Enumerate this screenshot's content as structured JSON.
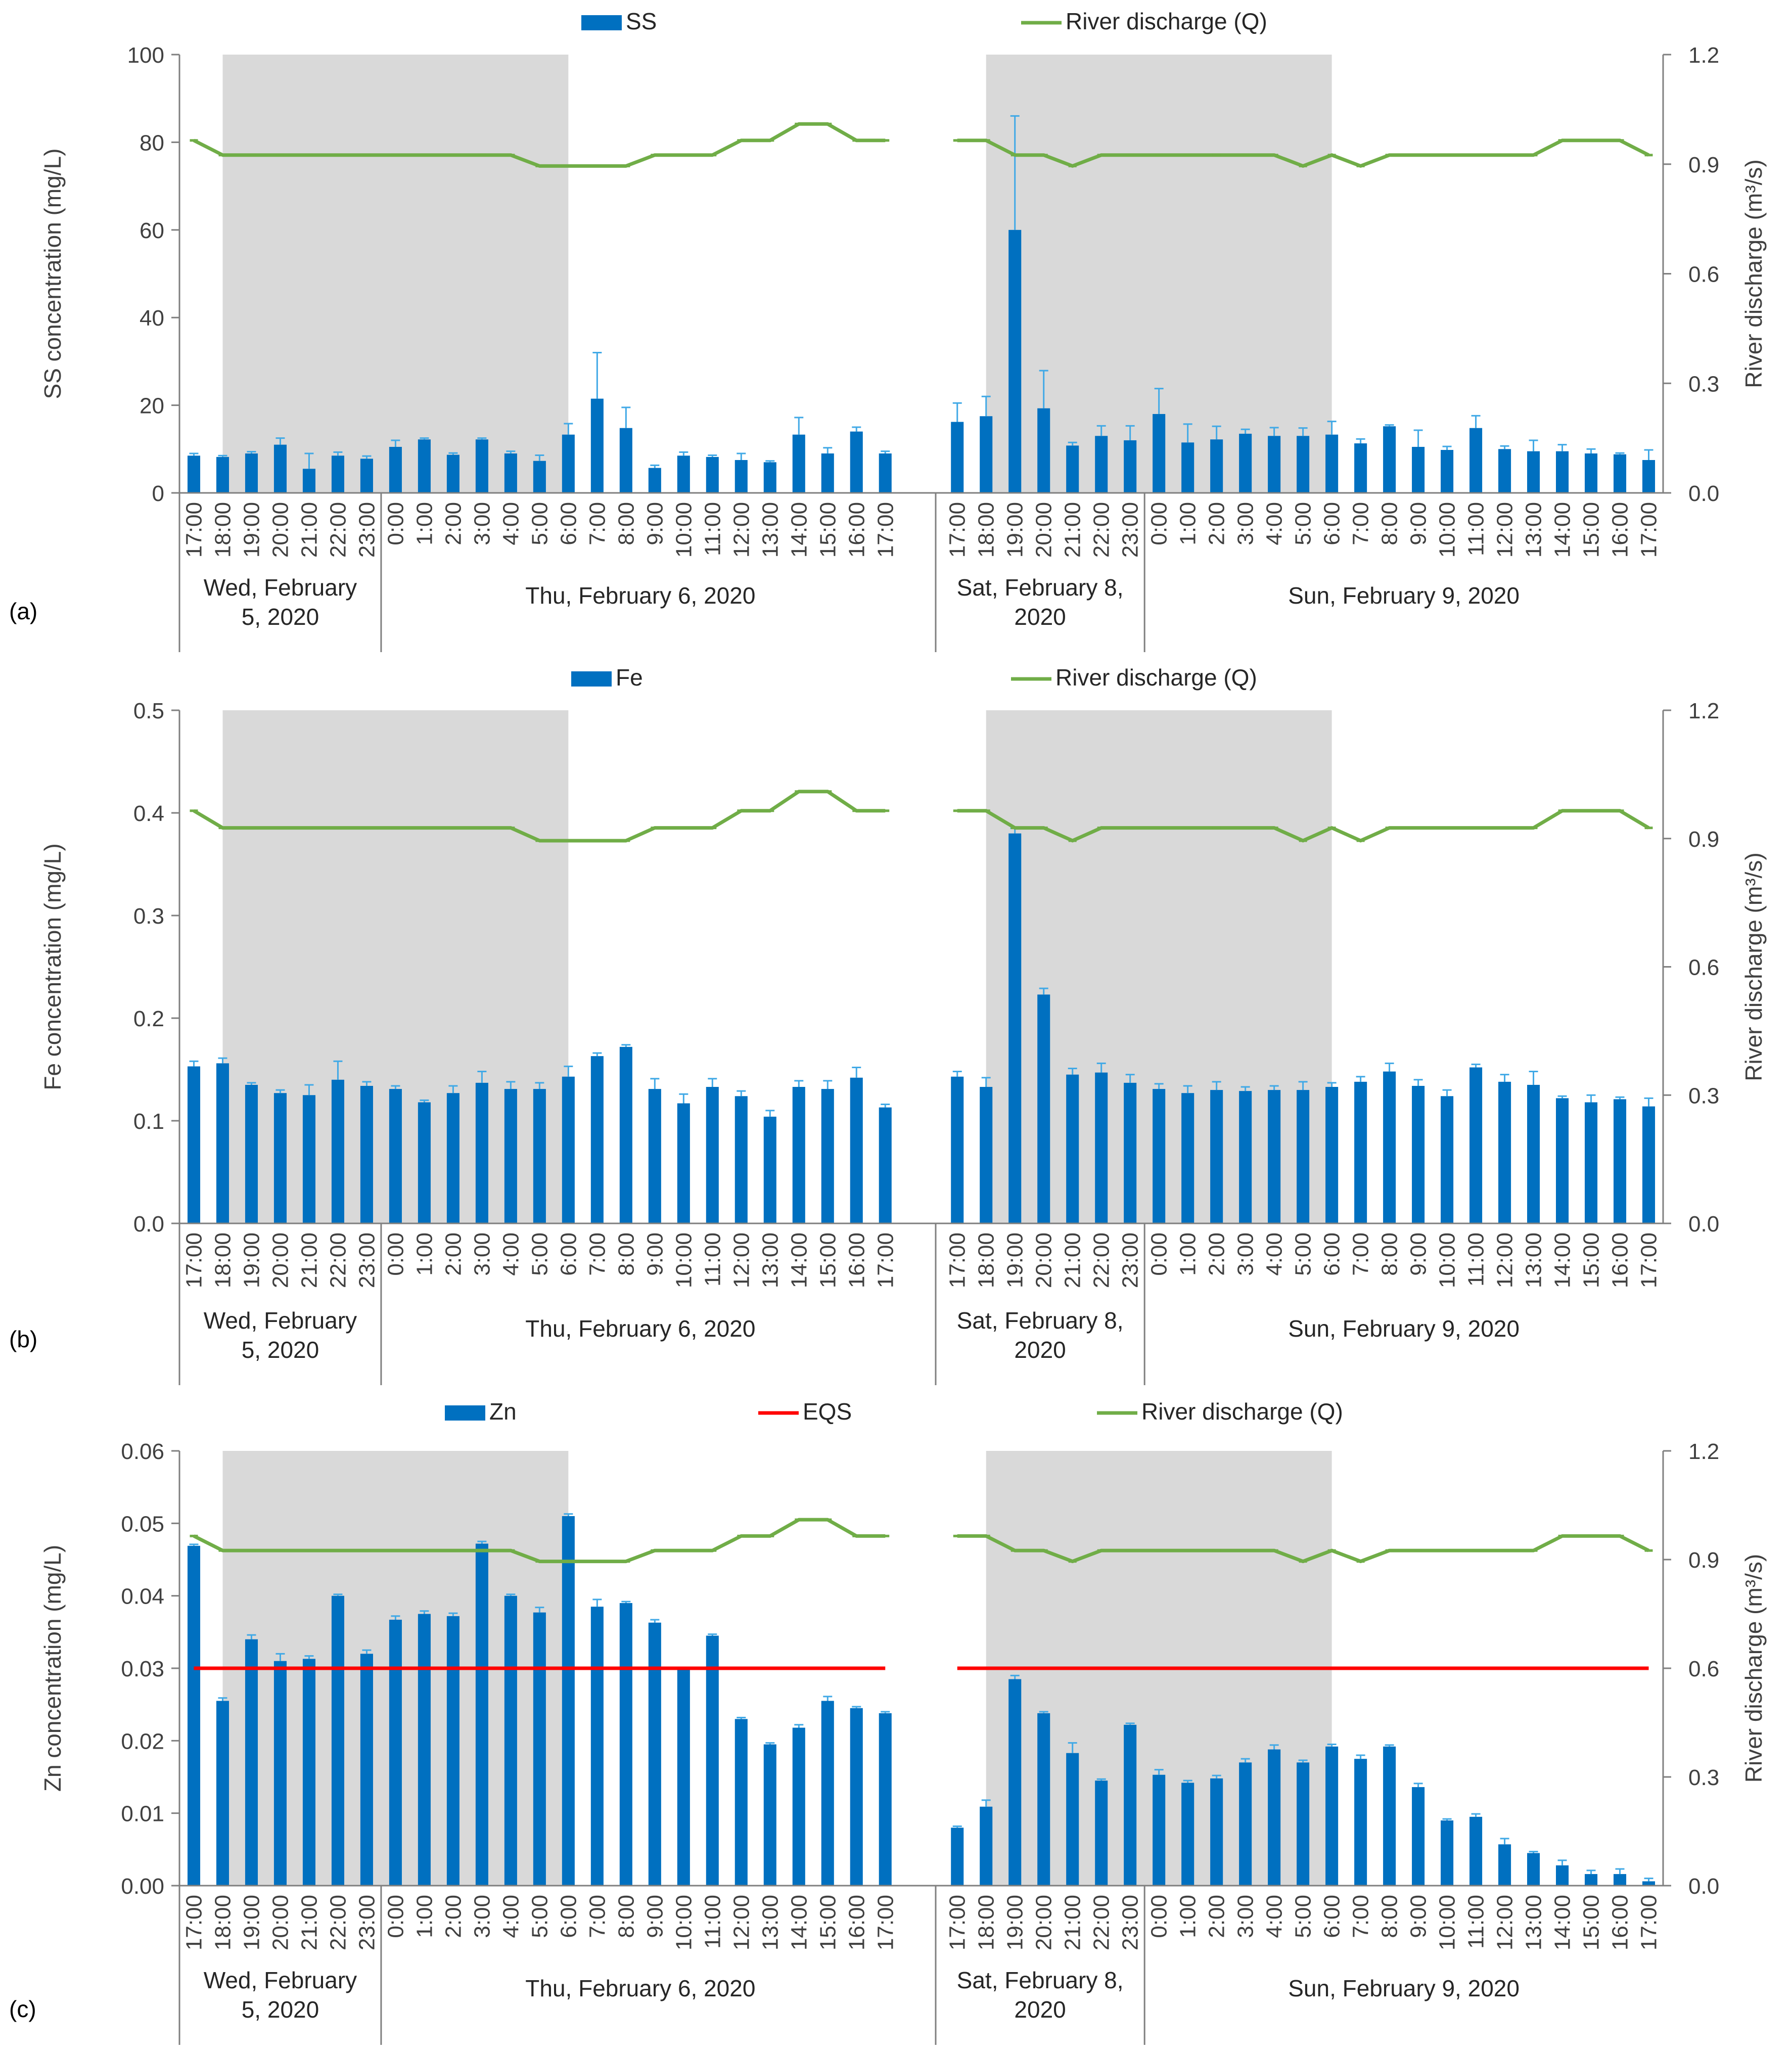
{
  "chart_data": [
    {
      "type": "bar",
      "panel_label": "(a)",
      "title": "",
      "ylabel": "SS concentration (mg/L)",
      "y2label": "River discharge (m³/s)",
      "ylim": [
        0,
        100
      ],
      "yticks": [
        "0",
        "20",
        "40",
        "60",
        "80",
        "100"
      ],
      "y2lim": [
        0,
        1.2
      ],
      "y2ticks": [
        "0.0",
        "0.3",
        "0.6",
        "0.9",
        "1.2"
      ],
      "legend": {
        "bars": "SS",
        "discharge": "River discharge (Q)"
      },
      "series": [
        {
          "name": "SS",
          "values": [
            8.5,
            8.2,
            9.0,
            11.0,
            5.5,
            8.5,
            7.8,
            10.5,
            12.2,
            8.7,
            12.2,
            9.0,
            7.3,
            13.3,
            21.5,
            14.8,
            5.7,
            8.5,
            8.2,
            7.5,
            7.0,
            13.3,
            9.0,
            14.0,
            9.0,
            16.2,
            17.5,
            60.0,
            19.3,
            10.8,
            13.0,
            12.0,
            18.0,
            11.5,
            12.2,
            13.5,
            13.0,
            13.0,
            13.3,
            11.3,
            15.2,
            10.5,
            9.8,
            14.8,
            10.0,
            9.5,
            9.5,
            9.0,
            8.8,
            7.5
          ]
        },
        {
          "name": "SS error",
          "values": [
            0.5,
            0.3,
            0.4,
            1.5,
            3.5,
            0.8,
            0.6,
            1.5,
            0.3,
            0.4,
            0.3,
            0.5,
            1.3,
            2.5,
            10.5,
            4.7,
            0.6,
            0.8,
            0.4,
            1.5,
            0.3,
            3.9,
            1.3,
            1.0,
            0.5,
            4.3,
            4.5,
            26.0,
            8.6,
            0.7,
            2.3,
            3.3,
            5.8,
            4.2,
            3.0,
            1.0,
            1.9,
            1.8,
            3.0,
            1.0,
            0.3,
            3.8,
            0.8,
            2.8,
            0.7,
            2.5,
            1.5,
            1.0,
            0.3,
            2.3
          ]
        },
        {
          "name": "River discharge (Q)",
          "values": [
            0.965,
            0.925,
            0.925,
            0.925,
            0.925,
            0.925,
            0.925,
            0.925,
            0.925,
            0.925,
            0.925,
            0.925,
            0.895,
            0.895,
            0.895,
            0.895,
            0.925,
            0.925,
            0.925,
            0.965,
            0.965,
            1.01,
            1.01,
            0.965,
            0.965,
            0.965,
            0.965,
            0.925,
            0.925,
            0.895,
            0.925,
            0.925,
            0.925,
            0.925,
            0.925,
            0.925,
            0.925,
            0.895,
            0.925,
            0.895,
            0.925,
            0.925,
            0.925,
            0.925,
            0.925,
            0.925,
            0.965,
            0.965,
            0.965,
            0.925
          ]
        }
      ]
    },
    {
      "type": "bar",
      "panel_label": "(b)",
      "title": "",
      "ylabel": "Fe concentration (mg/L)",
      "y2label": "River discharge (m³/s)",
      "ylim": [
        0,
        0.5
      ],
      "yticks": [
        "0.0",
        "0.1",
        "0.2",
        "0.3",
        "0.4",
        "0.5"
      ],
      "y2lim": [
        0,
        1.2
      ],
      "y2ticks": [
        "0.0",
        "0.3",
        "0.6",
        "0.9",
        "1.2"
      ],
      "legend": {
        "bars": "Fe",
        "discharge": "River discharge (Q)"
      },
      "series": [
        {
          "name": "Fe",
          "values": [
            0.153,
            0.156,
            0.135,
            0.127,
            0.125,
            0.14,
            0.134,
            0.131,
            0.118,
            0.127,
            0.137,
            0.131,
            0.131,
            0.143,
            0.163,
            0.172,
            0.131,
            0.117,
            0.133,
            0.124,
            0.104,
            0.133,
            0.131,
            0.142,
            0.113,
            0.143,
            0.133,
            0.38,
            0.223,
            0.145,
            0.147,
            0.137,
            0.131,
            0.127,
            0.13,
            0.129,
            0.13,
            0.13,
            0.133,
            0.138,
            0.148,
            0.134,
            0.124,
            0.152,
            0.138,
            0.135,
            0.122,
            0.118,
            0.121,
            0.114
          ]
        },
        {
          "name": "Fe error",
          "values": [
            0.005,
            0.005,
            0.002,
            0.003,
            0.01,
            0.018,
            0.004,
            0.003,
            0.002,
            0.007,
            0.011,
            0.007,
            0.006,
            0.01,
            0.003,
            0.002,
            0.01,
            0.009,
            0.008,
            0.005,
            0.006,
            0.006,
            0.008,
            0.01,
            0.003,
            0.005,
            0.009,
            0.005,
            0.006,
            0.006,
            0.009,
            0.008,
            0.005,
            0.007,
            0.008,
            0.004,
            0.004,
            0.008,
            0.004,
            0.005,
            0.008,
            0.006,
            0.006,
            0.003,
            0.007,
            0.013,
            0.002,
            0.007,
            0.002,
            0.008
          ]
        },
        {
          "name": "River discharge (Q)",
          "values": [
            0.965,
            0.925,
            0.925,
            0.925,
            0.925,
            0.925,
            0.925,
            0.925,
            0.925,
            0.925,
            0.925,
            0.925,
            0.895,
            0.895,
            0.895,
            0.895,
            0.925,
            0.925,
            0.925,
            0.965,
            0.965,
            1.01,
            1.01,
            0.965,
            0.965,
            0.965,
            0.965,
            0.925,
            0.925,
            0.895,
            0.925,
            0.925,
            0.925,
            0.925,
            0.925,
            0.925,
            0.925,
            0.895,
            0.925,
            0.895,
            0.925,
            0.925,
            0.925,
            0.925,
            0.925,
            0.925,
            0.965,
            0.965,
            0.965,
            0.925
          ]
        }
      ]
    },
    {
      "type": "bar",
      "panel_label": "(c)",
      "title": "",
      "ylabel": "Zn concentration (mg/L)",
      "y2label": "River discharge (m³/s)",
      "ylim": [
        0,
        0.06
      ],
      "yticks": [
        "0.00",
        "0.01",
        "0.02",
        "0.03",
        "0.04",
        "0.05",
        "0.06"
      ],
      "y2lim": [
        0,
        1.2
      ],
      "y2ticks": [
        "0.0",
        "0.3",
        "0.6",
        "0.9",
        "1.2"
      ],
      "legend": {
        "bars": "Zn",
        "eqs": "EQS",
        "discharge": "River discharge (Q)"
      },
      "eqs_value": 0.03,
      "series": [
        {
          "name": "Zn",
          "values": [
            0.0469,
            0.0255,
            0.034,
            0.031,
            0.0313,
            0.04,
            0.032,
            0.0367,
            0.0375,
            0.0372,
            0.0472,
            0.04,
            0.0377,
            0.051,
            0.0385,
            0.039,
            0.0363,
            0.0298,
            0.0345,
            0.023,
            0.0195,
            0.0218,
            0.0255,
            0.0245,
            0.0238,
            0.008,
            0.0109,
            0.0285,
            0.0238,
            0.0183,
            0.0145,
            0.0222,
            0.0153,
            0.0142,
            0.0148,
            0.017,
            0.0188,
            0.017,
            0.0192,
            0.0175,
            0.0192,
            0.0136,
            0.009,
            0.0095,
            0.0057,
            0.0045,
            0.0028,
            0.0016,
            0.0016,
            0.0006
          ]
        },
        {
          "name": "Zn error",
          "values": [
            0.0002,
            0.0004,
            0.0006,
            0.001,
            0.0004,
            0.0002,
            0.0005,
            0.0005,
            0.0004,
            0.0004,
            0.0003,
            0.0002,
            0.0007,
            0.0003,
            0.001,
            0.0002,
            0.0004,
            0.0002,
            0.0002,
            0.0002,
            0.0002,
            0.0004,
            0.0006,
            0.0002,
            0.0002,
            0.0002,
            0.0009,
            0.0005,
            0.0002,
            0.0014,
            0.0002,
            0.0002,
            0.0007,
            0.0003,
            0.0004,
            0.0005,
            0.0006,
            0.0003,
            0.0003,
            0.0005,
            0.0002,
            0.0005,
            0.0002,
            0.0004,
            0.0008,
            0.0002,
            0.0007,
            0.0005,
            0.0007,
            0.0004
          ]
        },
        {
          "name": "EQS",
          "values": [
            0.03
          ]
        },
        {
          "name": "River discharge (Q)",
          "values": [
            0.965,
            0.925,
            0.925,
            0.925,
            0.925,
            0.925,
            0.925,
            0.925,
            0.925,
            0.925,
            0.925,
            0.925,
            0.895,
            0.895,
            0.895,
            0.895,
            0.925,
            0.925,
            0.925,
            0.965,
            0.965,
            1.01,
            1.01,
            0.965,
            0.965,
            0.965,
            0.965,
            0.925,
            0.925,
            0.895,
            0.925,
            0.925,
            0.925,
            0.925,
            0.925,
            0.925,
            0.925,
            0.895,
            0.925,
            0.895,
            0.925,
            0.925,
            0.925,
            0.925,
            0.925,
            0.925,
            0.965,
            0.965,
            0.965,
            0.925
          ]
        }
      ]
    }
  ],
  "x_axis": {
    "categories": [
      "17:00",
      "18:00",
      "19:00",
      "20:00",
      "21:00",
      "22:00",
      "23:00",
      "0:00",
      "1:00",
      "2:00",
      "3:00",
      "4:00",
      "5:00",
      "6:00",
      "7:00",
      "8:00",
      "9:00",
      "10:00",
      "11:00",
      "12:00",
      "13:00",
      "14:00",
      "15:00",
      "16:00",
      "17:00",
      "17:00",
      "18:00",
      "19:00",
      "20:00",
      "21:00",
      "22:00",
      "23:00",
      "0:00",
      "1:00",
      "2:00",
      "3:00",
      "4:00",
      "5:00",
      "6:00",
      "7:00",
      "8:00",
      "9:00",
      "10:00",
      "11:00",
      "12:00",
      "13:00",
      "14:00",
      "15:00",
      "16:00",
      "17:00"
    ],
    "day_groups": [
      {
        "label_line1": "Wed, February",
        "label_line2": "5, 2020",
        "start": 0,
        "end": 6
      },
      {
        "label_line1": "Thu, February 6, 2020",
        "label_line2": "",
        "start": 7,
        "end": 24
      },
      {
        "label_line1": "Sat, February 8,",
        "label_line2": "2020",
        "start": 25,
        "end": 31
      },
      {
        "label_line1": "Sun, February 9, 2020",
        "label_line2": "",
        "start": 32,
        "end": 49
      }
    ],
    "night_shading": [
      {
        "from": "18:00 Wed, February 5, 2020",
        "to": "6:00 Thu, February 6, 2020"
      },
      {
        "from": "18:00 Sat, February 8, 2020",
        "to": "6:00 Sun, February 9, 2020"
      }
    ]
  },
  "colors": {
    "bars": "#0070c0",
    "error_bars": "#41a9e6",
    "discharge": "#70ad47",
    "eqs": "#ff0000",
    "night_shade": "#d9d9d9",
    "axis": "#7f7f7f"
  }
}
